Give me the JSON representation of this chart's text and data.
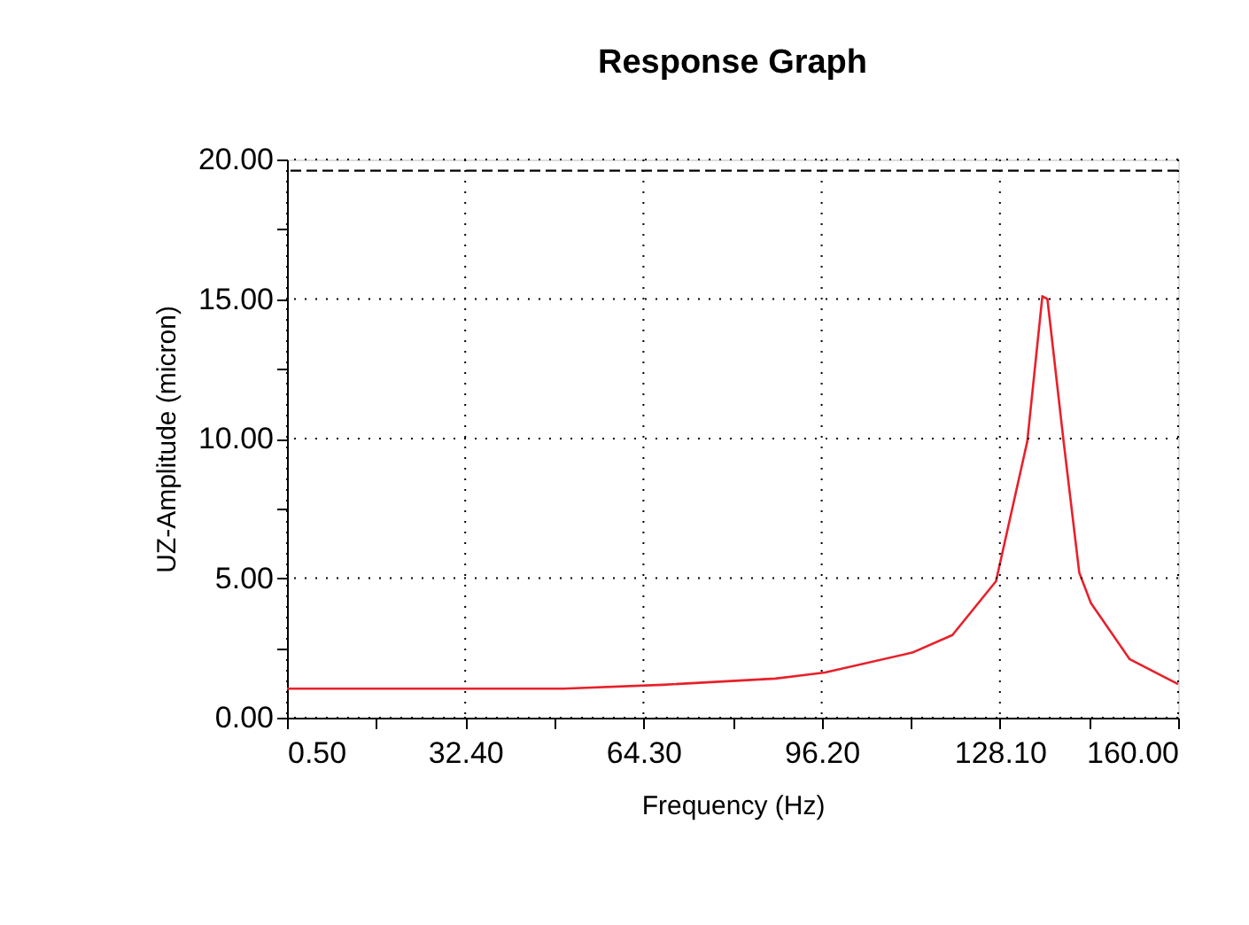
{
  "chart_data": {
    "type": "line",
    "title": "Response Graph",
    "xlabel": "Frequency (Hz)",
    "ylabel": "UZ-Amplitude (micron)",
    "x": [
      0.5,
      50,
      67.8,
      87.9,
      96.8,
      112.4,
      119.6,
      127.4,
      133.0,
      135.7,
      136.6,
      139.5,
      142.3,
      144.4,
      151.3,
      160
    ],
    "series": [
      {
        "color": "#e8202a",
        "values": [
          1.04,
          1.04,
          1.18,
          1.4,
          1.62,
          2.33,
          2.96,
          4.89,
          9.9,
          15.1,
          15.0,
          9.9,
          5.2,
          4.1,
          2.1,
          1.2
        ]
      }
    ],
    "xlim": [
      0.5,
      160
    ],
    "ylim": [
      0,
      20
    ],
    "xticks": [
      {
        "value": 0.5,
        "label": "0.50"
      },
      {
        "value": 16.45,
        "label": null
      },
      {
        "value": 32.4,
        "label": "32.40"
      },
      {
        "value": 48.35,
        "label": null
      },
      {
        "value": 64.3,
        "label": "64.30"
      },
      {
        "value": 80.25,
        "label": null
      },
      {
        "value": 96.2,
        "label": "96.20"
      },
      {
        "value": 112.15,
        "label": null
      },
      {
        "value": 128.1,
        "label": "128.10"
      },
      {
        "value": 144.05,
        "label": null
      },
      {
        "value": 160,
        "label": "160.00"
      }
    ],
    "yticks": [
      {
        "value": 0,
        "label": "0.00"
      },
      {
        "value": 2.5,
        "label": null
      },
      {
        "value": 5,
        "label": "5.00"
      },
      {
        "value": 7.5,
        "label": null
      },
      {
        "value": 10,
        "label": "10.00"
      },
      {
        "value": 12.5,
        "label": null
      },
      {
        "value": 15,
        "label": "15.00"
      },
      {
        "value": 17.5,
        "label": null
      },
      {
        "value": 20,
        "label": "20.00"
      }
    ],
    "grid": true,
    "line_style": "solid",
    "marker": "none",
    "ref_lines": [
      {
        "axis": "y",
        "value": 19.6,
        "line_style": "dashed",
        "color": "#000000"
      }
    ]
  }
}
